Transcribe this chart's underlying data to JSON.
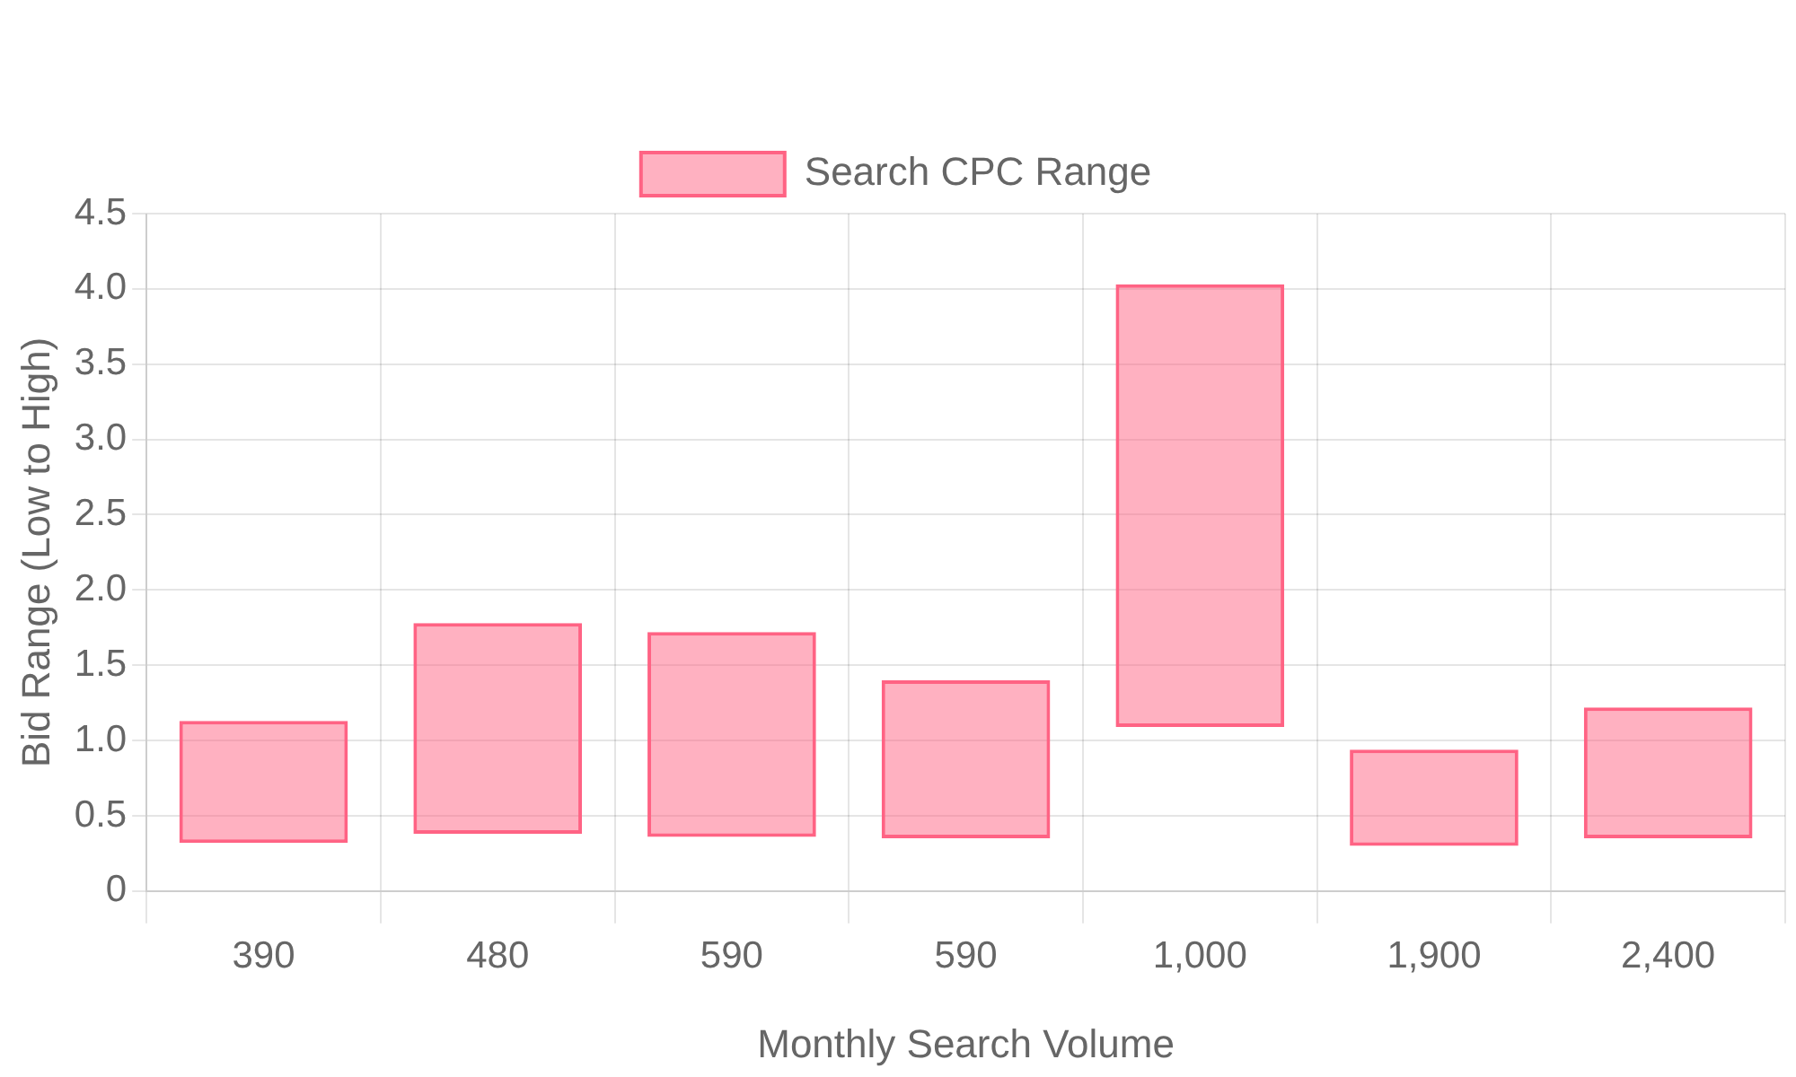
{
  "chart_data": {
    "type": "bar",
    "xlabel": "Monthly Search Volume",
    "ylabel": "Bid Range (Low to High)",
    "categories": [
      "390",
      "480",
      "590",
      "590",
      "1,000",
      "1,900",
      "2,400"
    ],
    "series": [
      {
        "name": "Search CPC Range",
        "color": "#ff6384",
        "values": [
          0.81,
          1.4,
          1.36,
          1.05,
          2.94,
          0.64,
          0.87
        ],
        "base": [
          0.32,
          0.38,
          0.36,
          0.35,
          1.09,
          0.3,
          0.35
        ]
      }
    ],
    "ylim": [
      0,
      4.5
    ],
    "yticks": [
      0,
      0.5,
      {
        "value": 1,
        "label": "1.0"
      },
      1.5,
      {
        "value": 2,
        "label": "2.0"
      },
      2.5,
      {
        "value": 3,
        "label": "3.0"
      },
      3.5,
      {
        "value": 4,
        "label": "4.0"
      },
      4.5
    ],
    "grid": true,
    "legend": "top"
  }
}
